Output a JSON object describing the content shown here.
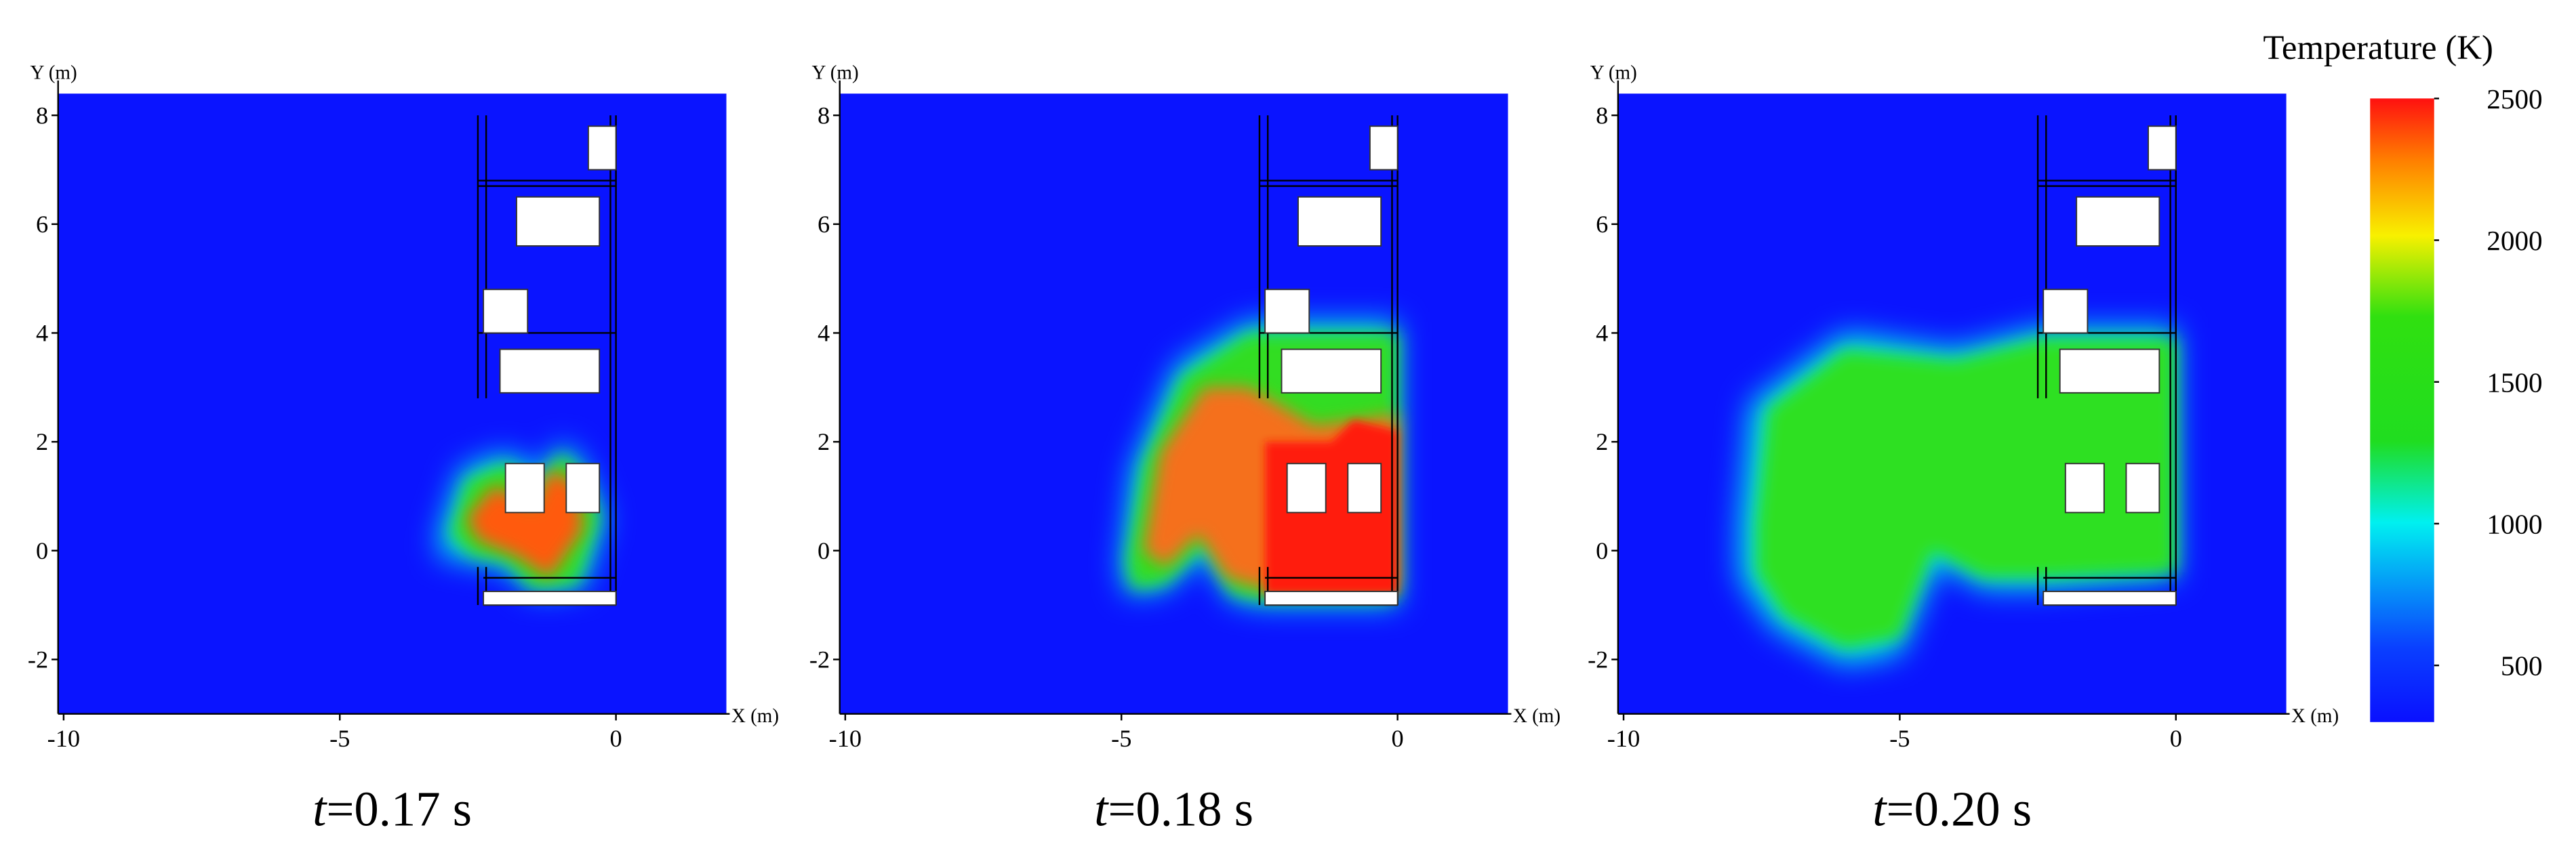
{
  "chart_data": [
    {
      "type": "heatmap",
      "x_label": "X (m)",
      "y_label": "Y (m)",
      "xlim": [
        -10.1,
        2
      ],
      "ylim": [
        -3,
        8.4
      ],
      "xticks": [
        -10,
        -5,
        0
      ],
      "yticks": [
        -2,
        0,
        2,
        4,
        6,
        8
      ],
      "caption_variable": "t",
      "caption_value": "=0.17 s"
    },
    {
      "type": "heatmap",
      "x_label": "X (m)",
      "y_label": "Y (m)",
      "xlim": [
        -10.1,
        2
      ],
      "ylim": [
        -3,
        8.4
      ],
      "xticks": [
        -10,
        -5,
        0
      ],
      "yticks": [
        -2,
        0,
        2,
        4,
        6,
        8
      ],
      "caption_variable": "t",
      "caption_value": "=0.18 s"
    },
    {
      "type": "heatmap",
      "x_label": "X (m)",
      "y_label": "Y (m)",
      "xlim": [
        -10.1,
        2
      ],
      "ylim": [
        -3,
        8.4
      ],
      "xticks": [
        -10,
        -5,
        0
      ],
      "yticks": [
        -2,
        0,
        2,
        4,
        6,
        8
      ],
      "caption_variable": "t",
      "caption_value": "=0.20 s"
    }
  ],
  "colorbar": {
    "title": "Temperature (K)",
    "lim": [
      300,
      2500
    ],
    "ticks": [
      500,
      1000,
      1500,
      2000,
      2500
    ]
  }
}
